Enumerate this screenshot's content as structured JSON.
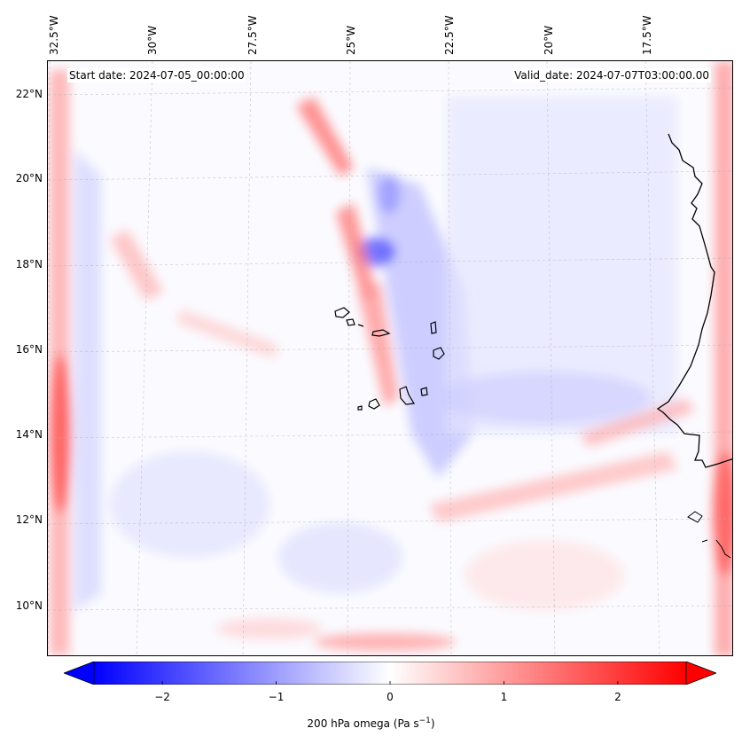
{
  "map": {
    "start_date": "Start date: 2024-07-05_00:00:00",
    "valid_date": "Valid_date: 2024-07-07T03:00:00.00",
    "lon_labels": [
      "32.5°W",
      "30°W",
      "27.5°W",
      "25°W",
      "22.5°W",
      "20°W",
      "17.5°W"
    ],
    "lat_labels": [
      "22°N",
      "20°N",
      "18°N",
      "16°N",
      "14°N",
      "12°N",
      "10°N"
    ],
    "field": "200 hPa omega",
    "colormap": "bwr",
    "colors": {
      "negative": "#0000ff",
      "zero": "#ffffff",
      "positive": "#ff0000",
      "coast": "#000000"
    }
  },
  "colorbar": {
    "ticks": [
      "−2",
      "−1",
      "0",
      "1",
      "2"
    ],
    "tick_values": [
      -2,
      -1,
      0,
      1,
      2
    ],
    "range": [
      -2.6,
      2.6
    ],
    "extend": "both",
    "label_prefix": "200 hPa omega (Pa s",
    "label_exp": "−1",
    "label_suffix": ")"
  }
}
